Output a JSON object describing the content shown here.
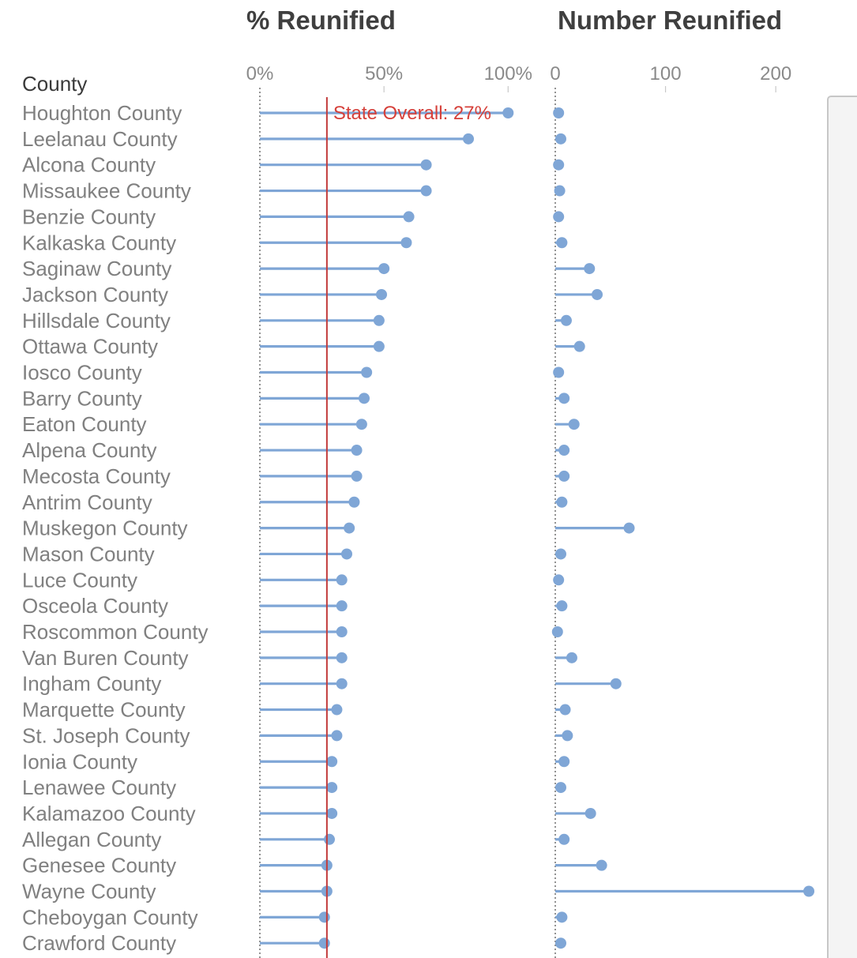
{
  "chart_data": {
    "type": "lollipop",
    "row_header": "County",
    "categories": [
      "Houghton County",
      "Leelanau County",
      "Alcona County",
      "Missaukee County",
      "Benzie County",
      "Kalkaska County",
      "Saginaw County",
      "Jackson County",
      "Hillsdale County",
      "Ottawa County",
      "Iosco County",
      "Barry County",
      "Eaton County",
      "Alpena County",
      "Mecosta County",
      "Antrim County",
      "Muskegon County",
      "Mason County",
      "Luce County",
      "Osceola County",
      "Roscommon County",
      "Van Buren County",
      "Ingham County",
      "Marquette County",
      "St. Joseph County",
      "Ionia County",
      "Lenawee County",
      "Kalamazoo County",
      "Allegan County",
      "Genesee County",
      "Wayne County",
      "Cheboygan County",
      "Crawford County"
    ],
    "panels": [
      {
        "title": "% Reunified",
        "unit": "%",
        "xlim": [
          0,
          105
        ],
        "ticks": [
          0,
          50,
          100
        ],
        "tick_labels": [
          "0%",
          "50%",
          "100%"
        ],
        "values": [
          100,
          84,
          67,
          67,
          60,
          59,
          50,
          49,
          48,
          48,
          43,
          42,
          41,
          39,
          39,
          38,
          36,
          35,
          33,
          33,
          33,
          33,
          33,
          31,
          31,
          29,
          29,
          29,
          28,
          27,
          27,
          26,
          26
        ],
        "reference_line": {
          "value": 27,
          "label": "State Overall: 27%",
          "color": "#d6403a"
        }
      },
      {
        "title": "Number Reunified",
        "unit": "count",
        "xlim": [
          0,
          235
        ],
        "ticks": [
          0,
          100,
          200
        ],
        "tick_labels": [
          "0",
          "100",
          "200"
        ],
        "values": [
          3,
          5,
          3,
          4,
          3,
          6,
          31,
          38,
          10,
          22,
          3,
          8,
          17,
          8,
          8,
          6,
          67,
          5,
          3,
          6,
          2,
          15,
          55,
          9,
          11,
          8,
          5,
          32,
          8,
          42,
          230,
          6,
          5
        ]
      }
    ],
    "colors": {
      "marks": "#7fa6d6",
      "reference": "#c23a3a"
    },
    "grid": false
  }
}
